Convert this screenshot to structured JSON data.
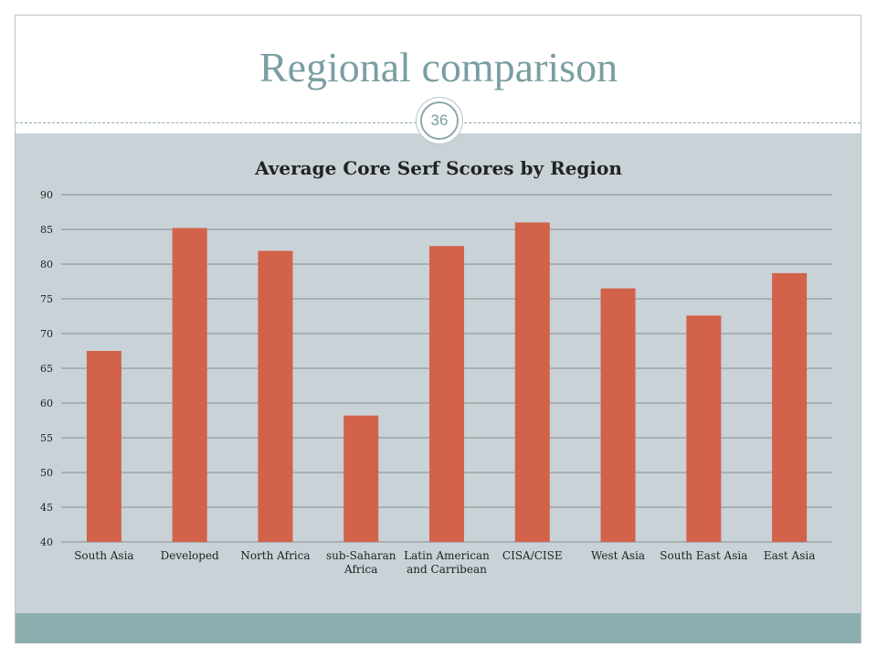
{
  "slide": {
    "title": "Regional comparison",
    "page_number": "36"
  },
  "colors": {
    "bar": "#d2624a",
    "content_background": "#c8d2d7",
    "footer_band": "#8daeae",
    "title_text": "#7a9ea3",
    "gridline": "#8c8c8c"
  },
  "chart_data": {
    "type": "bar",
    "title": "Average Core Serf Scores by Region",
    "xlabel": "",
    "ylabel": "",
    "categories": [
      "South Asia",
      "Developed",
      "North Africa",
      "sub-Saharan Africa",
      "Latin American and Carribean",
      "CISA/CISE",
      "West Asia",
      "South East Asia",
      "East Asia"
    ],
    "category_lines": [
      [
        "South Asia"
      ],
      [
        "Developed"
      ],
      [
        "North Africa"
      ],
      [
        "sub-Saharan",
        "Africa"
      ],
      [
        "Latin American",
        "and Carribean"
      ],
      [
        "CISA/CISE"
      ],
      [
        "West Asia"
      ],
      [
        "South East Asia"
      ],
      [
        "East Asia"
      ]
    ],
    "values": [
      67.5,
      85.2,
      81.9,
      58.2,
      82.6,
      86.0,
      76.5,
      72.6,
      78.7
    ],
    "ylim": [
      40,
      90
    ],
    "yticks": [
      40,
      45,
      50,
      55,
      60,
      65,
      70,
      75,
      80,
      85,
      90
    ],
    "grid": true,
    "legend": "none"
  }
}
